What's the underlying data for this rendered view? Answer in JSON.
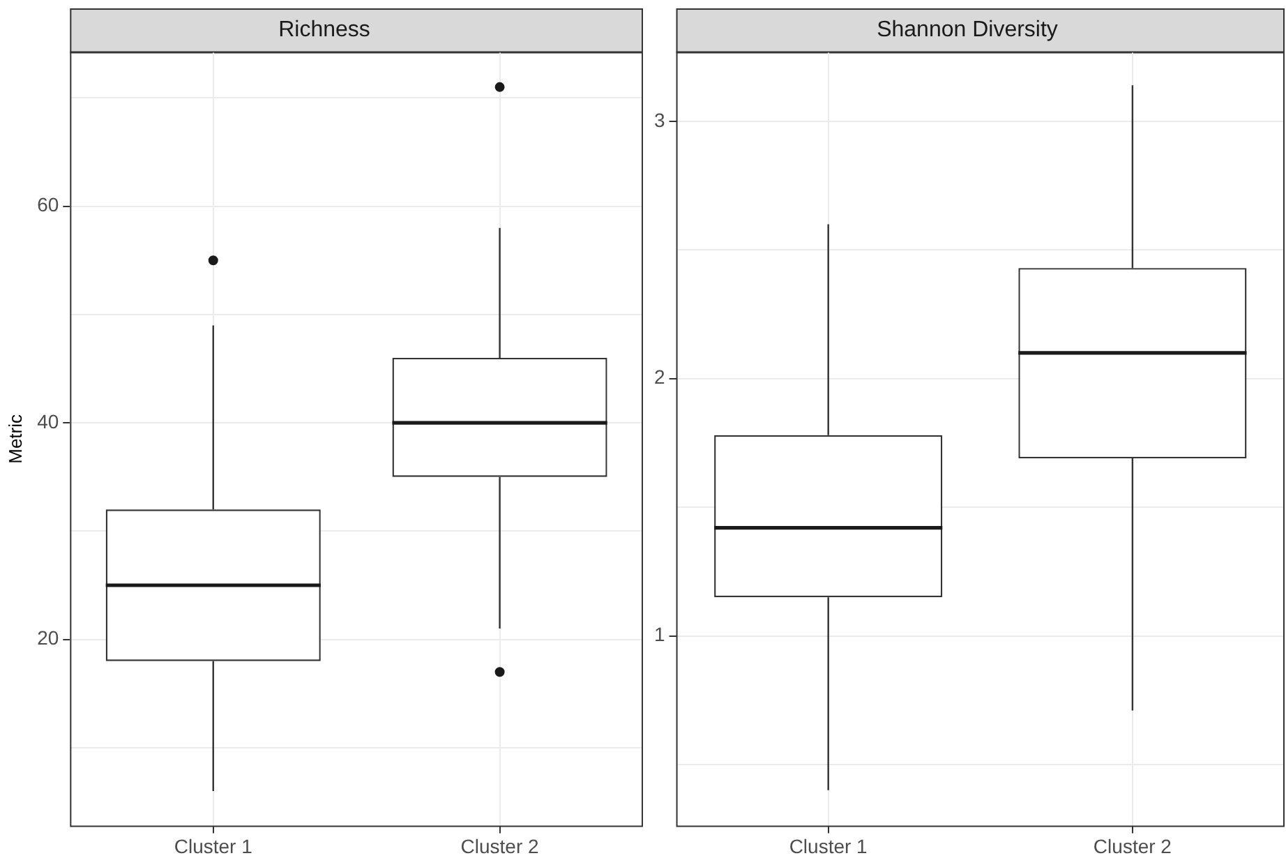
{
  "chart_data": [
    {
      "type": "box",
      "title": "Richness",
      "ylabel": "Metric",
      "categories": [
        "Cluster 1",
        "Cluster 2"
      ],
      "boxes": [
        {
          "low": 6,
          "q1": 18,
          "median": 25,
          "q3": 32,
          "high": 49,
          "outliers": [
            55
          ]
        },
        {
          "low": 21,
          "q1": 35,
          "median": 40,
          "q3": 46,
          "high": 58,
          "outliers": [
            71,
            17
          ]
        }
      ],
      "ylim": [
        2.75,
        74.25
      ],
      "yticks": [
        {
          "value": 10,
          "label": null
        },
        20,
        {
          "value": 30,
          "label": null
        },
        40,
        {
          "value": 50,
          "label": null
        },
        60,
        {
          "value": 70,
          "label": null
        }
      ],
      "grid": true,
      "legend": false
    },
    {
      "type": "box",
      "title": "Shannon Diversity",
      "categories": [
        "Cluster 1",
        "Cluster 2"
      ],
      "boxes": [
        {
          "low": 0.4,
          "q1": 1.15,
          "median": 1.42,
          "q3": 1.78,
          "high": 2.6
        },
        {
          "low": 0.71,
          "q1": 1.69,
          "median": 2.1,
          "q3": 2.43,
          "high": 3.14
        }
      ],
      "ylim": [
        0.26,
        3.27
      ],
      "yticks": [
        {
          "value": 0.5,
          "label": null
        },
        1,
        {
          "value": 1.5,
          "label": null
        },
        2,
        {
          "value": 2.5,
          "label": null
        },
        3
      ],
      "grid": true,
      "legend": false
    }
  ]
}
